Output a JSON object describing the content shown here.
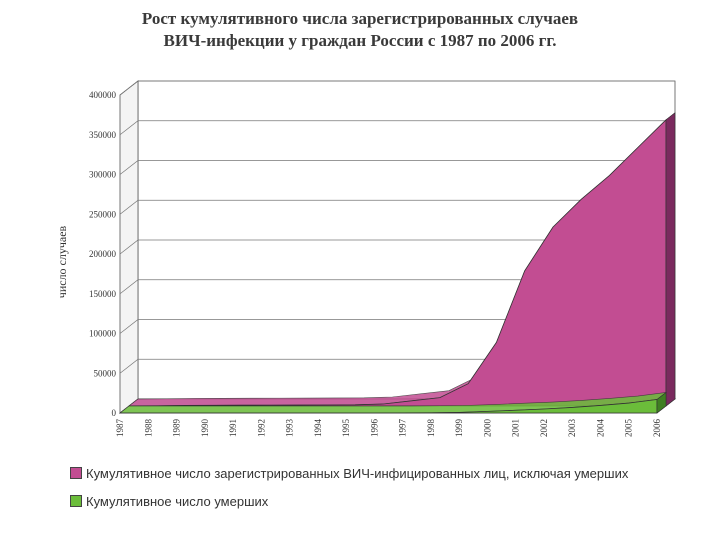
{
  "title": {
    "line1": "Рост кумулятивного числа зарегистрированных случаев",
    "line2": "ВИЧ-инфекции у граждан России с 1987 по 2006 гг."
  },
  "chart_data": {
    "type": "area",
    "ylabel": "число случаев",
    "ylim": [
      0,
      400000
    ],
    "yticks": [
      "0",
      "50000",
      "100000",
      "150000",
      "200000",
      "250000",
      "300000",
      "350000",
      "400000"
    ],
    "categories": [
      "1987",
      "1988",
      "1989",
      "1990",
      "1991",
      "1992",
      "1993",
      "1994",
      "1995",
      "1996",
      "1997",
      "1998",
      "1999",
      "2000",
      "2001",
      "2002",
      "2003",
      "2004",
      "2005",
      "2006"
    ],
    "series": [
      {
        "name": "Кумулятивное число зарегистрированных ВИЧ-инфицированных лиц, исключая умерших",
        "color": "#c24d92",
        "values": [
          100,
          300,
          800,
          900,
          1000,
          1100,
          1200,
          1300,
          1500,
          2500,
          6500,
          10500,
          28000,
          80000,
          170000,
          225000,
          260000,
          290000,
          325000,
          360000
        ]
      },
      {
        "name": "Кумулятивное число умерших",
        "color": "#6bbd3a",
        "values": [
          0,
          0,
          0,
          0,
          0,
          0,
          0,
          0,
          0,
          0,
          100,
          300,
          800,
          2000,
          3500,
          5000,
          7000,
          9500,
          12500,
          17000
        ]
      }
    ],
    "grid": true,
    "legend_position": "bottom"
  }
}
